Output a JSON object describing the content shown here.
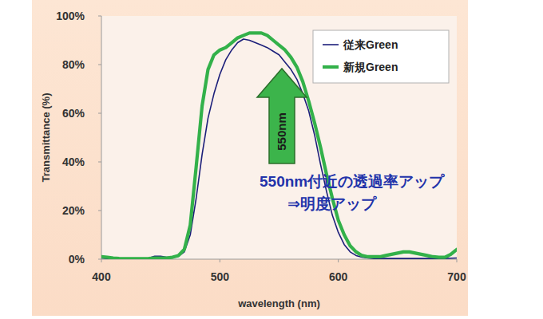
{
  "chart_data": {
    "type": "line",
    "x_label": "wavelength (nm)",
    "y_label": "Transmittance (%)",
    "x": [
      400,
      405,
      410,
      415,
      420,
      425,
      430,
      435,
      440,
      445,
      450,
      455,
      460,
      465,
      470,
      475,
      480,
      485,
      490,
      495,
      500,
      505,
      510,
      515,
      520,
      525,
      530,
      535,
      540,
      545,
      550,
      555,
      560,
      565,
      570,
      575,
      580,
      585,
      590,
      595,
      600,
      605,
      610,
      615,
      620,
      625,
      630,
      635,
      640,
      645,
      650,
      655,
      660,
      665,
      670,
      675,
      680,
      685,
      690,
      695,
      700
    ],
    "series": [
      {
        "name": "従来Green",
        "color": "#1c1f7a",
        "values": [
          0.5,
          0.3,
          0.2,
          0.1,
          0,
          0,
          0,
          0.2,
          0.5,
          1.2,
          1.2,
          0.8,
          0.8,
          1.2,
          3,
          10,
          25,
          43,
          58,
          68,
          76,
          82,
          86,
          89,
          90.5,
          90,
          89,
          88,
          87,
          85.5,
          84,
          81,
          78,
          74,
          68,
          61,
          51,
          39,
          28,
          18,
          11,
          6,
          3,
          1.5,
          0.8,
          0.5,
          0.3,
          0.3,
          0.3,
          0.3,
          0.3,
          0.3,
          0.3,
          0.3,
          0.3,
          0.3,
          0.3,
          0.3,
          0.3,
          0.4,
          0.5
        ]
      },
      {
        "name": "新規Green",
        "color": "#33b14a",
        "values": [
          1,
          0.8,
          0.5,
          0.3,
          0.2,
          0.2,
          0.2,
          0.2,
          0.3,
          0.5,
          0.5,
          0.5,
          0.8,
          1.5,
          4,
          14,
          38,
          63,
          78,
          84,
          86,
          87,
          89,
          91,
          92,
          93,
          93,
          93,
          92,
          90,
          88,
          86,
          83,
          79,
          73,
          65,
          56,
          46,
          35,
          25,
          16,
          10,
          5.5,
          3,
          1.5,
          1,
          1,
          1,
          1.5,
          2,
          2.5,
          3,
          3,
          2.5,
          2,
          1.5,
          1,
          0.8,
          0.8,
          2,
          4
        ]
      }
    ],
    "xlim": [
      400,
      700
    ],
    "ylim": [
      0,
      100
    ],
    "xticks": [
      400,
      500,
      600,
      700
    ],
    "yticks": [
      {
        "value": 0,
        "label": "0%"
      },
      {
        "value": 20,
        "label": "20%"
      },
      {
        "value": 40,
        "label": "40%"
      },
      {
        "value": 60,
        "label": "60%"
      },
      {
        "value": 80,
        "label": "80%"
      },
      {
        "value": 100,
        "label": "100%"
      }
    ],
    "grid": false,
    "legend": "upper right",
    "annotations": [
      "550nm",
      "550nm付近の透過率アップ",
      "⇒明度アップ"
    ]
  }
}
